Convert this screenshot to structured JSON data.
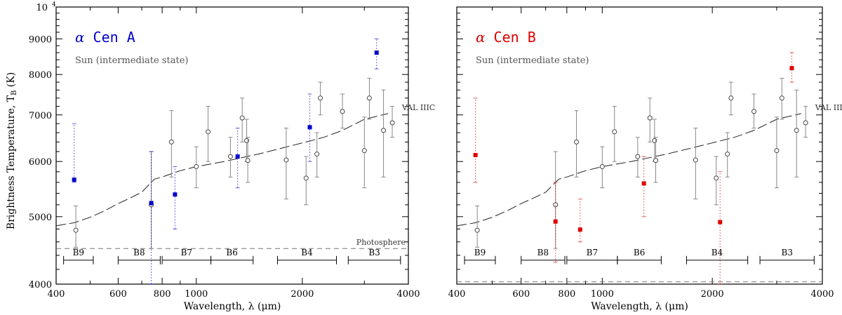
{
  "ylabel": "Brightness Temperature, T",
  "ylabel_sub": "B",
  "ylabel_unit": " (K)",
  "yticks": [
    "4000",
    "5000",
    "6000",
    "7000",
    "8000",
    "9000",
    "10"
  ],
  "ytop_exp": "4",
  "colors": {
    "A": "#0000cc",
    "B": "#dd0000",
    "sun": "#555555"
  },
  "chart_data": [
    {
      "type": "scatter",
      "title_symbol": "α",
      "title_text": " Cen A",
      "subtitle": "Sun (intermediate state)",
      "xlabel": "Wavelength, λ (μm)",
      "xticks": [
        "400",
        "600",
        "800",
        "1000",
        "2000",
        "4000"
      ],
      "xscale": "log",
      "xlim": [
        400,
        4000
      ],
      "yscale": "log",
      "ylim": [
        4000,
        10000
      ],
      "model_label": "VAL IIIC",
      "photosphere_label": "Photosphere",
      "photosphere_value": 4500,
      "bands": [
        {
          "name": "B9",
          "range": [
            420,
            510
          ]
        },
        {
          "name": "B8",
          "range": [
            600,
            790
          ]
        },
        {
          "name": "B7",
          "range": [
            800,
            1100
          ]
        },
        {
          "name": "B6",
          "range": [
            1100,
            1450
          ]
        },
        {
          "name": "B4",
          "range": [
            1700,
            2500
          ]
        },
        {
          "name": "B3",
          "range": [
            2700,
            3800
          ]
        }
      ],
      "star": [
        {
          "x": 450,
          "y": 5650,
          "lo": 5600,
          "hi": 6800
        },
        {
          "x": 745,
          "y": 5230,
          "lo": 4000,
          "hi": 6200
        },
        {
          "x": 870,
          "y": 5380,
          "lo": 4800,
          "hi": 5900
        },
        {
          "x": 1310,
          "y": 6100,
          "lo": 5500,
          "hi": 6700
        },
        {
          "x": 2100,
          "y": 6720,
          "lo": 6000,
          "hi": 7500
        },
        {
          "x": 3250,
          "y": 8600,
          "lo": 8150,
          "hi": 9000
        }
      ]
    },
    {
      "type": "scatter",
      "title_symbol": "α",
      "title_text": " Cen B",
      "subtitle": "Sun (intermediate state)",
      "xlabel": "Wavelength, λ (μm)",
      "xticks": [
        "400",
        "600",
        "800",
        "1000",
        "2000",
        "4000"
      ],
      "xscale": "log",
      "xlim": [
        400,
        4000
      ],
      "yscale": "log",
      "ylim": [
        4000,
        10000
      ],
      "model_label": "VAL IIIC",
      "photosphere_value": 4030,
      "bands": [
        {
          "name": "B9",
          "range": [
            420,
            510
          ]
        },
        {
          "name": "B8",
          "range": [
            600,
            790
          ]
        },
        {
          "name": "B7",
          "range": [
            800,
            1100
          ]
        },
        {
          "name": "B6",
          "range": [
            1100,
            1450
          ]
        },
        {
          "name": "B4",
          "range": [
            1700,
            2500
          ]
        },
        {
          "name": "B3",
          "range": [
            2700,
            3800
          ]
        }
      ],
      "star": [
        {
          "x": 450,
          "y": 6130,
          "lo": 5600,
          "hi": 7400
        },
        {
          "x": 745,
          "y": 4920,
          "lo": 4300,
          "hi": 5600
        },
        {
          "x": 870,
          "y": 4790,
          "lo": 4600,
          "hi": 5300
        },
        {
          "x": 1300,
          "y": 5580,
          "lo": 5000,
          "hi": 6100
        },
        {
          "x": 2100,
          "y": 4910,
          "lo": 4000,
          "hi": 5800
        },
        {
          "x": 3300,
          "y": 8170,
          "lo": 7800,
          "hi": 8600
        }
      ]
    }
  ],
  "sun": [
    {
      "x": 455,
      "y": 4780,
      "lo": 4520,
      "hi": 5180
    },
    {
      "x": 745,
      "y": 5200,
      "lo": 4500,
      "hi": 6200
    },
    {
      "x": 850,
      "y": 6400,
      "lo": 5700,
      "hi": 7100
    },
    {
      "x": 1000,
      "y": 5900,
      "lo": 5500,
      "hi": 6300
    },
    {
      "x": 1080,
      "y": 6620,
      "lo": 6000,
      "hi": 7200
    },
    {
      "x": 1250,
      "y": 6100,
      "lo": 5700,
      "hi": 6500
    },
    {
      "x": 1350,
      "y": 6930,
      "lo": 6400,
      "hi": 7400
    },
    {
      "x": 1390,
      "y": 6430,
      "lo": 6000,
      "hi": 6900
    },
    {
      "x": 1400,
      "y": 6020,
      "lo": 5600,
      "hi": 6500
    },
    {
      "x": 1800,
      "y": 6030,
      "lo": 5300,
      "hi": 6700
    },
    {
      "x": 2050,
      "y": 5680,
      "lo": 5200,
      "hi": 6100
    },
    {
      "x": 2200,
      "y": 6150,
      "lo": 5700,
      "hi": 6600
    },
    {
      "x": 2250,
      "y": 7400,
      "lo": 7000,
      "hi": 7800
    },
    {
      "x": 2600,
      "y": 7080,
      "lo": 6700,
      "hi": 7500
    },
    {
      "x": 3000,
      "y": 6220,
      "lo": 5500,
      "hi": 6950
    },
    {
      "x": 3100,
      "y": 7400,
      "lo": 6900,
      "hi": 7900
    },
    {
      "x": 3400,
      "y": 6650,
      "lo": 5700,
      "hi": 7600
    },
    {
      "x": 3600,
      "y": 6820,
      "lo": 6500,
      "hi": 7200
    }
  ],
  "model": [
    [
      400,
      4850
    ],
    [
      450,
      4900
    ],
    [
      500,
      4990
    ],
    [
      550,
      5100
    ],
    [
      600,
      5220
    ],
    [
      650,
      5320
    ],
    [
      700,
      5420
    ],
    [
      760,
      5660
    ],
    [
      800,
      5700
    ],
    [
      900,
      5820
    ],
    [
      1000,
      5900
    ],
    [
      1200,
      6000
    ],
    [
      1500,
      6150
    ],
    [
      2000,
      6380
    ],
    [
      2300,
      6500
    ],
    [
      2600,
      6650
    ],
    [
      3000,
      6900
    ],
    [
      3500,
      7030
    ]
  ]
}
